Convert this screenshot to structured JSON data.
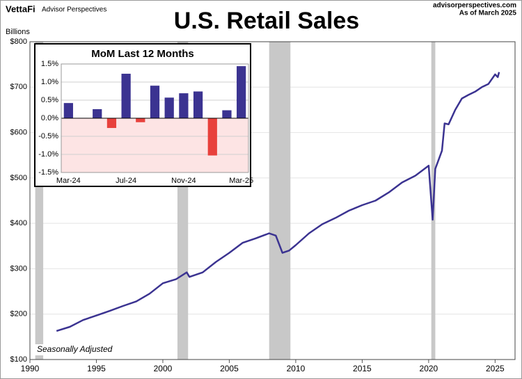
{
  "header": {
    "logo": "VettaFi",
    "logo_subtitle": "Advisor Perspectives",
    "site": "advisorperspectives.com",
    "date_note": "As of March 2025"
  },
  "chart_data": [
    {
      "type": "line",
      "title": "U.S. Retail Sales",
      "y_axis_label": "Billions",
      "annotation": "Seasonally Adjusted",
      "color": "#3b3391",
      "recession_color": "#c8c8c8",
      "grid": true,
      "x": [
        1992,
        1993,
        1994,
        1995,
        1996,
        1997,
        1998,
        1999,
        2000,
        2001,
        2001.8,
        2002,
        2003,
        2004,
        2005,
        2006,
        2007,
        2008,
        2008.5,
        2009,
        2009.5,
        2010,
        2011,
        2012,
        2013,
        2014,
        2015,
        2016,
        2017,
        2018,
        2019,
        2020,
        2020.3,
        2020.5,
        2021,
        2021.2,
        2021.5,
        2022,
        2022.5,
        2023,
        2023.5,
        2024,
        2024.5,
        2025,
        2025.2,
        2025.3
      ],
      "values": [
        163,
        172,
        187,
        197,
        207,
        218,
        228,
        245,
        268,
        277,
        292,
        282,
        292,
        315,
        335,
        357,
        367,
        378,
        373,
        335,
        340,
        352,
        378,
        398,
        412,
        428,
        440,
        450,
        468,
        490,
        505,
        527,
        408,
        520,
        560,
        620,
        618,
        650,
        675,
        683,
        690,
        700,
        707,
        728,
        722,
        733
      ],
      "recessions": [
        [
          1990.4,
          1991
        ],
        [
          2001.1,
          2001.9
        ],
        [
          2008,
          2009.6
        ],
        [
          2020.2,
          2020.5
        ]
      ],
      "xlim": [
        1990,
        2026.5
      ],
      "xticks": [
        1990,
        1995,
        2000,
        2005,
        2010,
        2015,
        2020,
        2025
      ],
      "ylim": [
        100,
        800
      ],
      "yticks": [
        {
          "value": 100,
          "label": "$100"
        },
        {
          "value": 200,
          "label": "$200"
        },
        {
          "value": 300,
          "label": "$300"
        },
        {
          "value": 400,
          "label": "$400"
        },
        {
          "value": 500,
          "label": "$500"
        },
        {
          "value": 600,
          "label": "$600"
        },
        {
          "value": 700,
          "label": "$700"
        },
        {
          "value": 800,
          "label": "$800"
        }
      ]
    },
    {
      "type": "bar",
      "title": "MoM Last 12 Months",
      "categories": [
        "Mar-24",
        null,
        null,
        null,
        "Jul-24",
        null,
        null,
        null,
        "Nov-24",
        null,
        null,
        null,
        "Mar-25"
      ],
      "values": [
        0.42,
        0.01,
        0.25,
        -0.27,
        1.23,
        -0.11,
        0.9,
        0.57,
        0.69,
        0.74,
        -1.03,
        0.22,
        1.44
      ],
      "color": "#3b3391",
      "negative_color": "#e8413c",
      "negative_shade": "#fde4e4",
      "grid": true,
      "ylim": [
        -1.5,
        1.5
      ],
      "yticks": [
        {
          "value": -1.5,
          "label": "-1.5%"
        },
        {
          "value": -1,
          "label": "-1.0%"
        },
        {
          "value": -0.5,
          "label": "-0.5%"
        },
        {
          "value": 0,
          "label": "0.0%"
        },
        {
          "value": 0.5,
          "label": "0.5%"
        },
        {
          "value": 1,
          "label": "1.0%"
        },
        {
          "value": 1.5,
          "label": "1.5%"
        }
      ]
    }
  ]
}
